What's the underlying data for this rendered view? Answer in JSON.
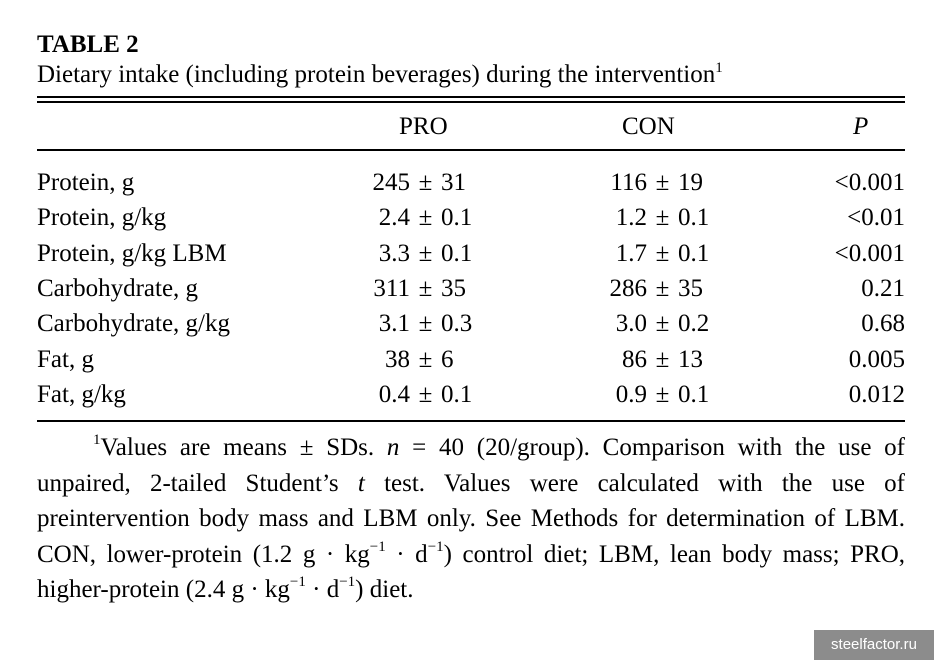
{
  "table_label": "TABLE 2",
  "caption": "Dietary intake (including protein beverages) during the intervention",
  "caption_marker": "1",
  "columns": {
    "pro": "PRO",
    "con": "CON",
    "p": "P"
  },
  "rows": [
    {
      "label": "Protein, g",
      "pro_mean": "245",
      "pro_sd": "31",
      "con_mean": "116",
      "con_sd": "19",
      "p": "<0.001"
    },
    {
      "label": "Protein, g/kg",
      "pro_mean": "2.4",
      "pro_sd": "0.1",
      "con_mean": "1.2",
      "con_sd": "0.1",
      "p": "<0.01"
    },
    {
      "label": "Protein, g/kg LBM",
      "pro_mean": "3.3",
      "pro_sd": "0.1",
      "con_mean": "1.7",
      "con_sd": "0.1",
      "p": "<0.001"
    },
    {
      "label": "Carbohydrate, g",
      "pro_mean": "311",
      "pro_sd": "35",
      "con_mean": "286",
      "con_sd": "35",
      "p": "0.21"
    },
    {
      "label": "Carbohydrate, g/kg",
      "pro_mean": "3.1",
      "pro_sd": "0.3",
      "con_mean": "3.0",
      "con_sd": "0.2",
      "p": "0.68"
    },
    {
      "label": "Fat, g",
      "pro_mean": "38",
      "pro_sd": "6",
      "con_mean": "86",
      "con_sd": "13",
      "p": "0.005"
    },
    {
      "label": "Fat, g/kg",
      "pro_mean": "0.4",
      "pro_sd": "0.1",
      "con_mean": "0.9",
      "con_sd": "0.1",
      "p": "0.012"
    }
  ],
  "pm_symbol": "±",
  "footnote": {
    "marker": "1",
    "t1": "Values are means ± SDs.",
    "n_var": "n",
    "t2": "= 40 (20/group). Comparison with the use of unpaired, 2-tailed Student’s",
    "t_var": "t",
    "t3": "test. Values were calculated with the use of preintervention body mass and LBM only. See Methods for determination of LBM. CON, lower-protein (1.2 g · kg",
    "exp1": "−1",
    "t4": " · d",
    "exp2": "−1",
    "t5": ") control diet; LBM, lean body mass; PRO, higher-protein (2.4 g · kg",
    "exp3": "−1",
    "t6": " · d",
    "exp4": "−1",
    "t7": ") diet."
  },
  "watermark": "steelfactor.ru"
}
